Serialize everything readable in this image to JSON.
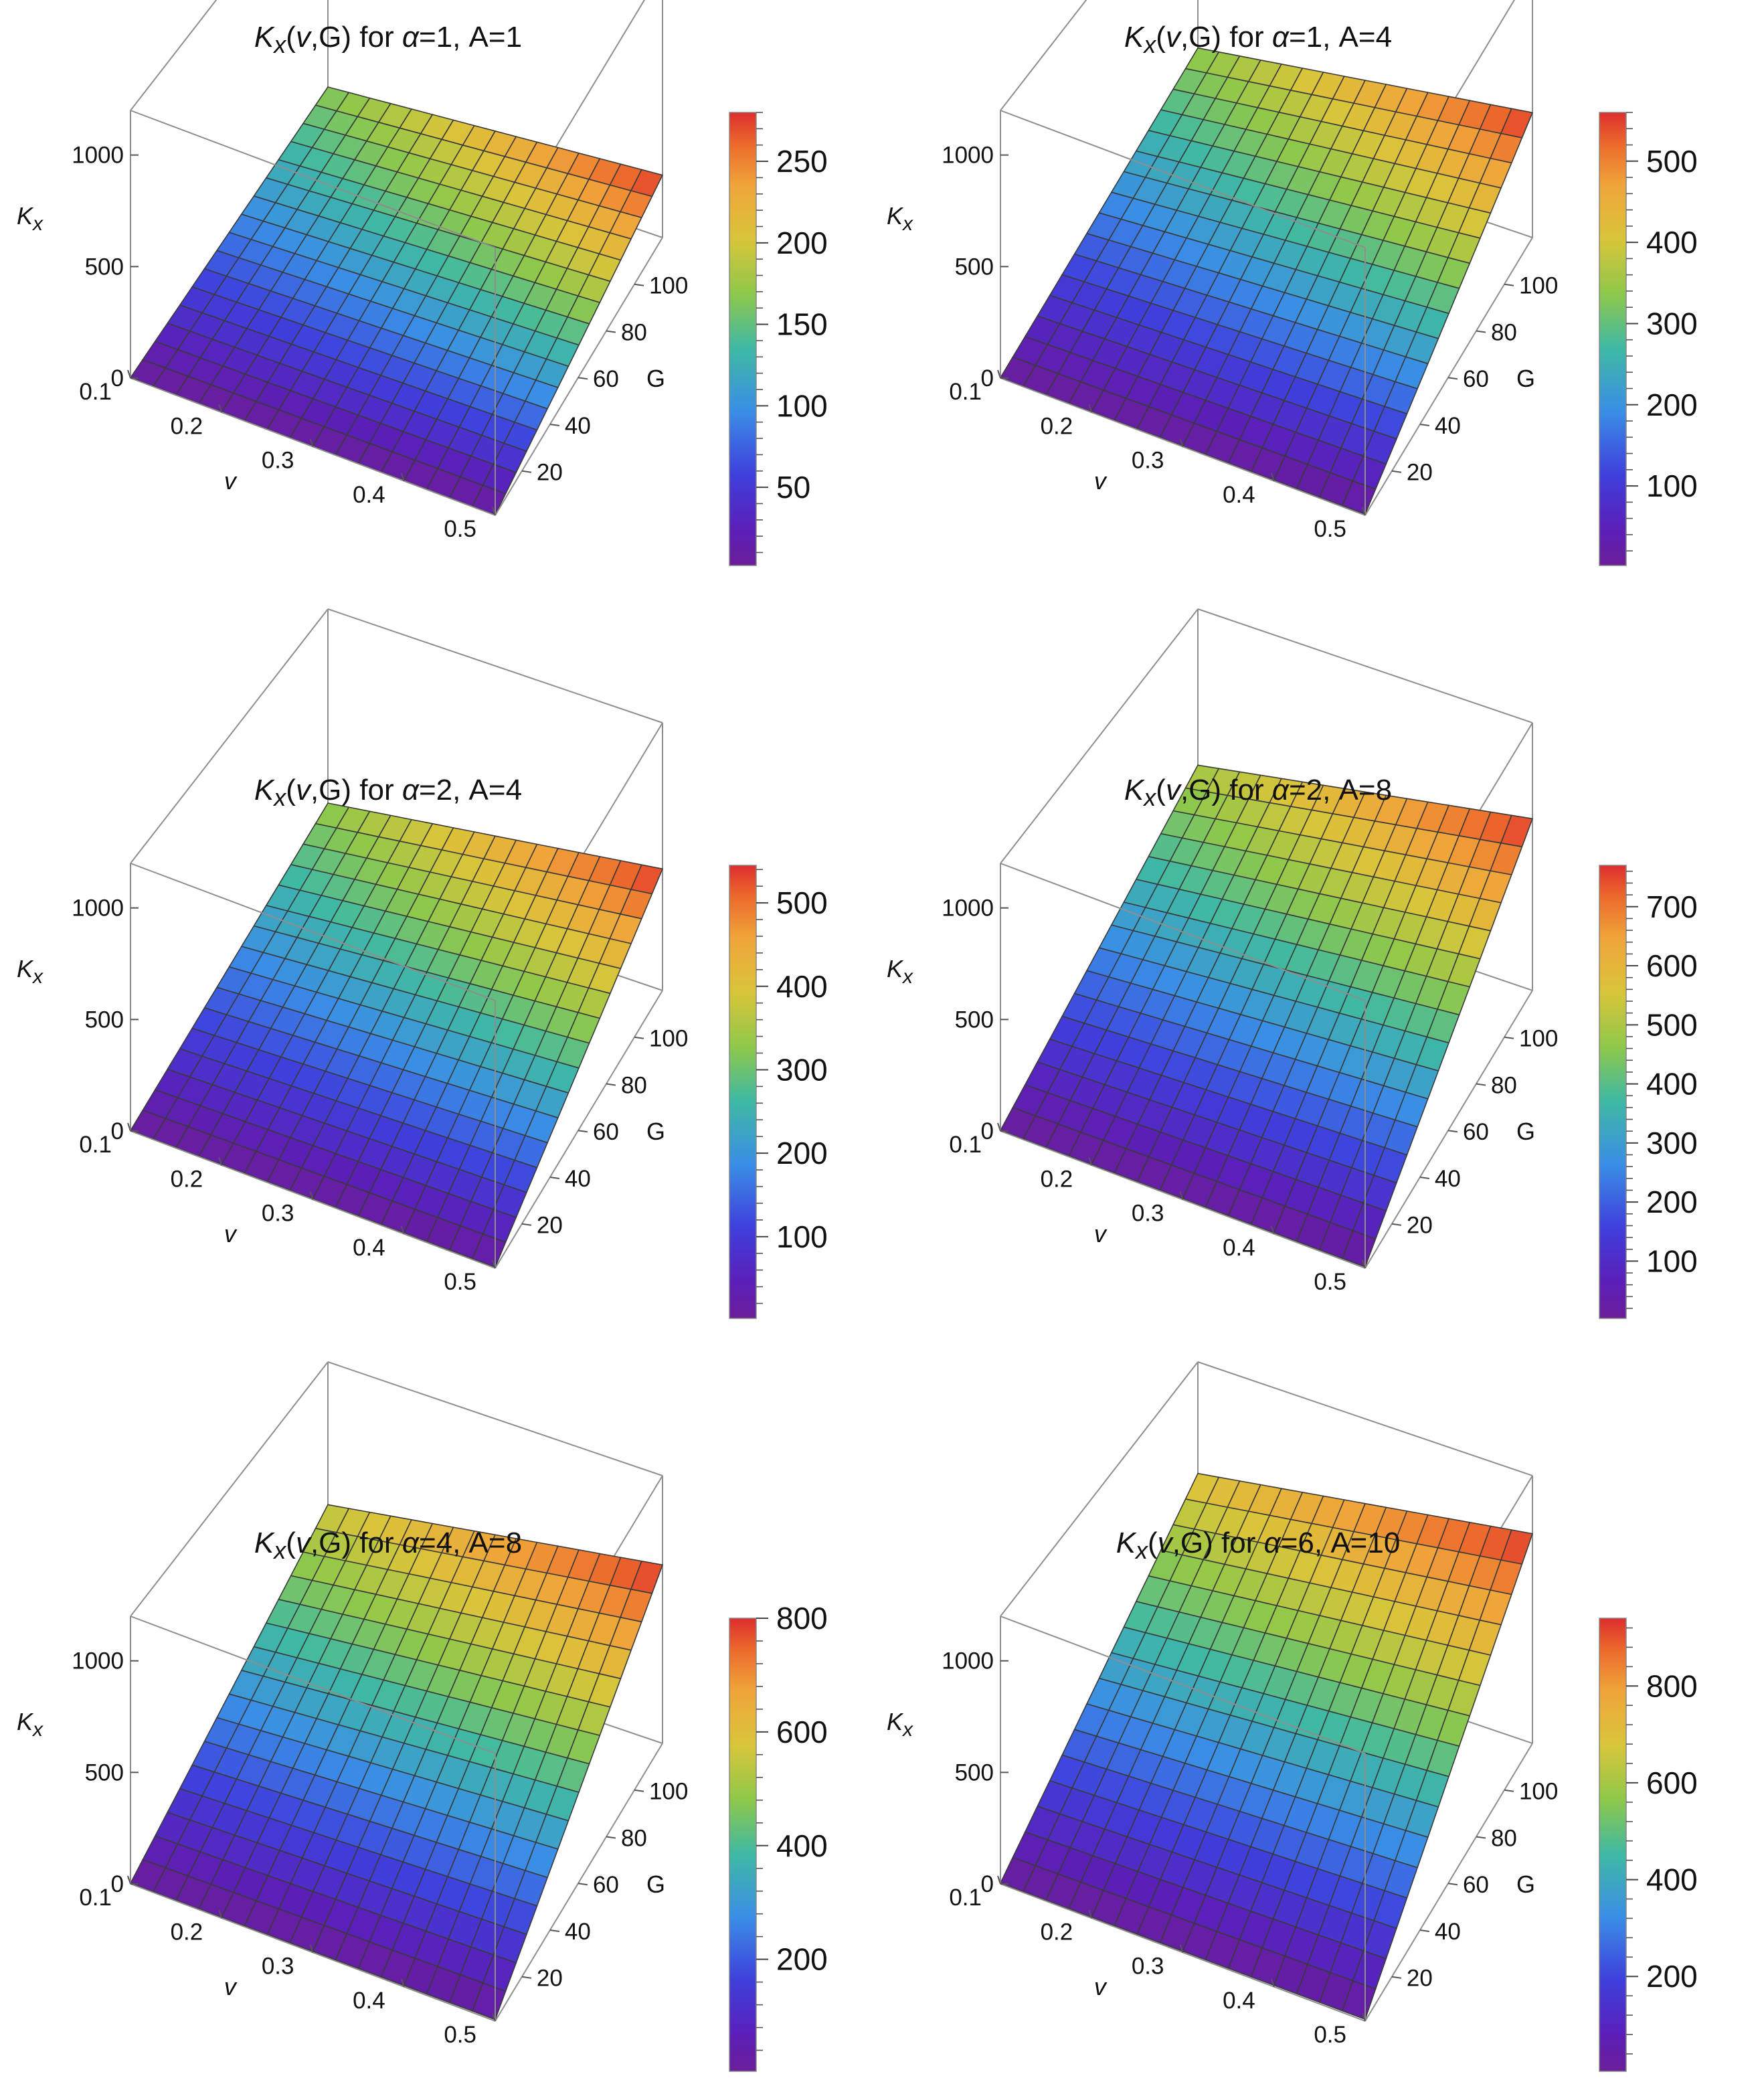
{
  "chart_data": [
    {
      "type": "surface3d",
      "title_prefix": "K",
      "title_sub": "x",
      "title_args": "(",
      "title_v": "v",
      "title_rest": ",G) for ",
      "title_alpha": "α",
      "title_tail": "=1, A=1",
      "zlabel": "K",
      "zlabel_sub": "x",
      "xlabel": "v",
      "ylabel": "G",
      "x_ticks": [
        "0.1",
        "0.2",
        "0.3",
        "0.4",
        "0.5"
      ],
      "y_ticks": [
        "20",
        "40",
        "60",
        "80",
        "100"
      ],
      "z_ticks": [
        "0",
        "500",
        "1000"
      ],
      "xlim": [
        0.1,
        0.5
      ],
      "ylim": [
        1,
        120
      ],
      "zlim": [
        0,
        1200
      ],
      "surface_corners": {
        "v0.1_G1": 2,
        "v0.5_G1": 2,
        "v0.1_G120": 165,
        "v0.5_G120": 280
      },
      "colorbar_range": [
        2,
        280
      ],
      "colorbar_ticks": [
        "50",
        "100",
        "150",
        "200",
        "250"
      ],
      "colorbar_tick_values": [
        50,
        100,
        150,
        200,
        250
      ]
    },
    {
      "type": "surface3d",
      "title_prefix": "K",
      "title_sub": "x",
      "title_args": "(",
      "title_v": "v",
      "title_rest": ",G) for ",
      "title_alpha": "α",
      "title_tail": "=1, A=4",
      "zlabel": "K",
      "zlabel_sub": "x",
      "xlabel": "v",
      "ylabel": "G",
      "x_ticks": [
        "0.1",
        "0.2",
        "0.3",
        "0.4",
        "0.5"
      ],
      "y_ticks": [
        "20",
        "40",
        "60",
        "80",
        "100"
      ],
      "z_ticks": [
        "0",
        "500",
        "1000"
      ],
      "xlim": [
        0.1,
        0.5
      ],
      "ylim": [
        1,
        120
      ],
      "zlim": [
        0,
        1200
      ],
      "surface_corners": {
        "v0.1_G1": 2,
        "v0.5_G1": 5,
        "v0.1_G120": 340,
        "v0.5_G120": 560
      },
      "colorbar_range": [
        2,
        560
      ],
      "colorbar_ticks": [
        "100",
        "200",
        "300",
        "400",
        "500"
      ],
      "colorbar_tick_values": [
        100,
        200,
        300,
        400,
        500
      ]
    },
    {
      "type": "surface3d",
      "title_prefix": "K",
      "title_sub": "x",
      "title_args": "(",
      "title_v": "v",
      "title_rest": ",G) for ",
      "title_alpha": "α",
      "title_tail": "=2, A=4",
      "zlabel": "K",
      "zlabel_sub": "x",
      "xlabel": "v",
      "ylabel": "G",
      "x_ticks": [
        "0.1",
        "0.2",
        "0.3",
        "0.4",
        "0.5"
      ],
      "y_ticks": [
        "20",
        "40",
        "60",
        "80",
        "100"
      ],
      "z_ticks": [
        "0",
        "500",
        "1000"
      ],
      "xlim": [
        0.1,
        0.5
      ],
      "ylim": [
        1,
        120
      ],
      "zlim": [
        0,
        1200
      ],
      "surface_corners": {
        "v0.1_G1": 2,
        "v0.5_G1": 5,
        "v0.1_G120": 330,
        "v0.5_G120": 545
      },
      "colorbar_range": [
        2,
        545
      ],
      "colorbar_ticks": [
        "100",
        "200",
        "300",
        "400",
        "500"
      ],
      "colorbar_tick_values": [
        100,
        200,
        300,
        400,
        500
      ]
    },
    {
      "type": "surface3d",
      "title_prefix": "K",
      "title_sub": "x",
      "title_args": "(",
      "title_v": "v",
      "title_rest": ",G) for ",
      "title_alpha": "α",
      "title_tail": "=2, A=8",
      "zlabel": "K",
      "zlabel_sub": "x",
      "xlabel": "v",
      "ylabel": "G",
      "x_ticks": [
        "0.1",
        "0.2",
        "0.3",
        "0.4",
        "0.5"
      ],
      "y_ticks": [
        "20",
        "40",
        "60",
        "80",
        "100"
      ],
      "z_ticks": [
        "0",
        "500",
        "1000"
      ],
      "xlim": [
        0.1,
        0.5
      ],
      "ylim": [
        1,
        120
      ],
      "zlim": [
        0,
        1200
      ],
      "surface_corners": {
        "v0.1_G1": 3,
        "v0.5_G1": 6,
        "v0.1_G120": 500,
        "v0.5_G120": 770
      },
      "colorbar_range": [
        3,
        770
      ],
      "colorbar_ticks": [
        "100",
        "200",
        "300",
        "400",
        "500",
        "600",
        "700"
      ],
      "colorbar_tick_values": [
        100,
        200,
        300,
        400,
        500,
        600,
        700
      ]
    },
    {
      "type": "surface3d",
      "title_prefix": "K",
      "title_sub": "x",
      "title_args": "(",
      "title_v": "v",
      "title_rest": ",G) for ",
      "title_alpha": "α",
      "title_tail": "=4, A=8",
      "zlabel": "K",
      "zlabel_sub": "x",
      "xlabel": "v",
      "ylabel": "G",
      "x_ticks": [
        "0.1",
        "0.2",
        "0.3",
        "0.4",
        "0.5"
      ],
      "y_ticks": [
        "20",
        "40",
        "60",
        "80",
        "100"
      ],
      "z_ticks": [
        "0",
        "500",
        "1000"
      ],
      "xlim": [
        0.1,
        0.5
      ],
      "ylim": [
        1,
        120
      ],
      "zlim": [
        0,
        1200
      ],
      "surface_corners": {
        "v0.1_G1": 3,
        "v0.5_G1": 7,
        "v0.1_G120": 560,
        "v0.5_G120": 800
      },
      "colorbar_range": [
        3,
        800
      ],
      "colorbar_ticks": [
        "200",
        "400",
        "600",
        "800"
      ],
      "colorbar_tick_values": [
        200,
        400,
        600,
        800
      ]
    },
    {
      "type": "surface3d",
      "title_prefix": "K",
      "title_sub": "x",
      "title_args": "(",
      "title_v": "v",
      "title_rest": ",G) for ",
      "title_alpha": "α",
      "title_tail": "=6, A=10",
      "zlabel": "K",
      "zlabel_sub": "x",
      "xlabel": "v",
      "ylabel": "G",
      "x_ticks": [
        "0.1",
        "0.2",
        "0.3",
        "0.4",
        "0.5"
      ],
      "y_ticks": [
        "20",
        "40",
        "60",
        "80",
        "100"
      ],
      "z_ticks": [
        "0",
        "500",
        "1000"
      ],
      "xlim": [
        0.1,
        0.5
      ],
      "ylim": [
        1,
        120
      ],
      "zlim": [
        0,
        1200
      ],
      "surface_corners": {
        "v0.1_G1": 4,
        "v0.5_G1": 8,
        "v0.1_G120": 700,
        "v0.5_G120": 940
      },
      "colorbar_range": [
        4,
        940
      ],
      "colorbar_ticks": [
        "200",
        "400",
        "600",
        "800"
      ],
      "colorbar_tick_values": [
        200,
        400,
        600,
        800
      ]
    }
  ]
}
